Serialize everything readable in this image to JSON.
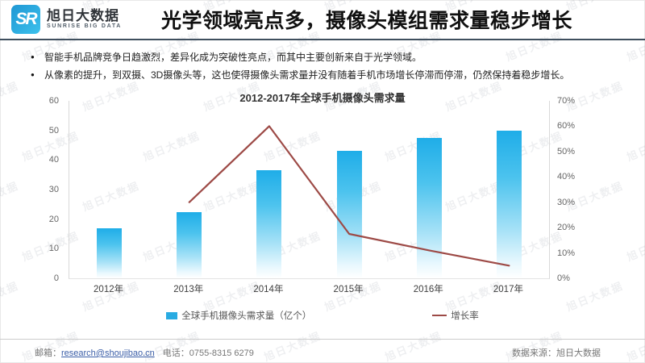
{
  "brand": {
    "logo_monogram": "SR",
    "name_cn": "旭日大数据",
    "name_en": "SUNRISE BIG DATA"
  },
  "header": {
    "title": "光学领域亮点多，摄像头模组需求量稳步增长"
  },
  "bullets": [
    "智能手机品牌竞争日趋激烈，差异化成为突破性亮点，而其中主要创新来自于光学领域。",
    "从像素的提升，到双摄、3D摄像头等，这也使得摄像头需求量并没有随着手机市场增长停滞而停滞，仍然保持着稳步增长。"
  ],
  "chart_data": {
    "type": "bar",
    "title": "2012-2017年全球手机摄像头需求量",
    "categories": [
      "2012年",
      "2013年",
      "2014年",
      "2015年",
      "2016年",
      "2017年"
    ],
    "series": [
      {
        "name": "全球手机摄像头需求量（亿个）",
        "kind": "bar",
        "axis": "left",
        "values": [
          17,
          22.5,
          36.5,
          43,
          47.5,
          50
        ]
      },
      {
        "name": "增长率",
        "kind": "line",
        "axis": "right",
        "values": [
          null,
          30,
          60,
          17.5,
          11,
          5
        ]
      }
    ],
    "left_axis": {
      "min": 0,
      "max": 60,
      "ticks": [
        0,
        10,
        20,
        30,
        40,
        50,
        60
      ]
    },
    "right_axis": {
      "min": 0,
      "max": 70,
      "unit": "%",
      "ticks": [
        "0%",
        "10%",
        "20%",
        "30%",
        "40%",
        "50%",
        "60%",
        "70%"
      ]
    },
    "legend": [
      {
        "label": "全球手机摄像头需求量（亿个）",
        "marker": "bar"
      },
      {
        "label": "增长率",
        "marker": "line"
      }
    ],
    "colors": {
      "bar_top": "#1fade8",
      "bar_swatch": "#29abe2",
      "line": "#9d4a46"
    },
    "grid": false,
    "legend_position": "bottom"
  },
  "footer": {
    "email_label": "邮箱：",
    "email": "research@shoujibao.cn",
    "phone_label": "电话：",
    "phone": "0755-8315 6279",
    "source": "数据来源：旭日大数据"
  },
  "watermark": {
    "text": "旭日大数据"
  }
}
